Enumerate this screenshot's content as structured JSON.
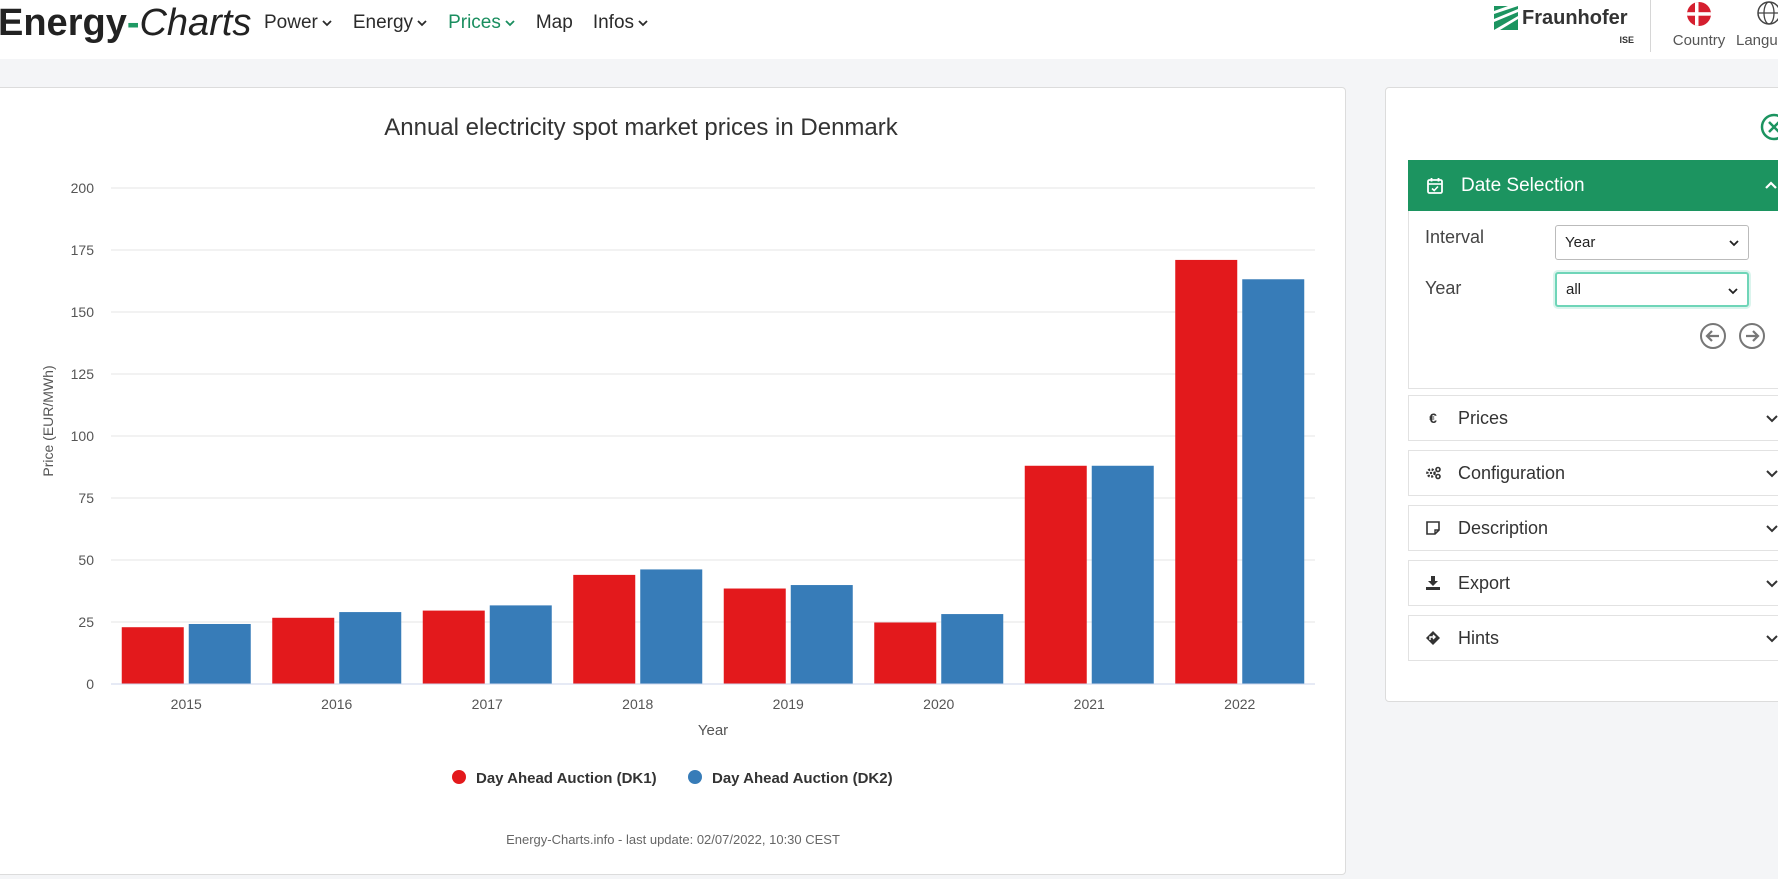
{
  "brand": {
    "part1": "Energy",
    "dash": "-",
    "part2": "Charts"
  },
  "nav": [
    {
      "label": "Power",
      "dropdown": true,
      "active": false
    },
    {
      "label": "Energy",
      "dropdown": true,
      "active": false
    },
    {
      "label": "Prices",
      "dropdown": true,
      "active": true
    },
    {
      "label": "Map",
      "dropdown": false,
      "active": false
    },
    {
      "label": "Infos",
      "dropdown": true,
      "active": false
    }
  ],
  "partner": {
    "name": "Fraunhofer",
    "sub": "ISE"
  },
  "header_controls": {
    "country": "Country",
    "language": "Langu"
  },
  "colors": {
    "accent": "#1c9460",
    "dk1": "#e3191c",
    "dk2": "#377cb8"
  },
  "chart_data": {
    "type": "bar",
    "title": "Annual electricity spot market prices in Denmark",
    "xlabel": "Year",
    "ylabel": "Price (EUR/MWh)",
    "ylim": [
      0,
      200
    ],
    "yticks": [
      0,
      25,
      50,
      75,
      100,
      125,
      150,
      175,
      200
    ],
    "categories": [
      "2015",
      "2016",
      "2017",
      "2018",
      "2019",
      "2020",
      "2021",
      "2022"
    ],
    "series": [
      {
        "name": "Day Ahead Auction (DK1)",
        "color": "#e3191c",
        "values": [
          22.9,
          26.7,
          29.6,
          44.0,
          38.5,
          24.8,
          88.0,
          171.0
        ]
      },
      {
        "name": "Day Ahead Auction (DK2)",
        "color": "#377cb8",
        "values": [
          24.2,
          29.0,
          31.7,
          46.2,
          39.9,
          28.2,
          88.0,
          163.2
        ]
      }
    ],
    "credit": "Energy-Charts.info - last update: 02/07/2022, 10:30 CEST",
    "legend_position": "bottom"
  },
  "sidebar": {
    "date_selection": {
      "title": "Date Selection",
      "interval_label": "Interval",
      "interval_value": "Year",
      "year_label": "Year",
      "year_value": "all"
    },
    "sections": [
      {
        "label": "Prices",
        "icon": "euro-icon"
      },
      {
        "label": "Configuration",
        "icon": "gears-icon"
      },
      {
        "label": "Description",
        "icon": "note-icon"
      },
      {
        "label": "Export",
        "icon": "download-icon"
      },
      {
        "label": "Hints",
        "icon": "diamond-arrow-icon"
      }
    ]
  }
}
